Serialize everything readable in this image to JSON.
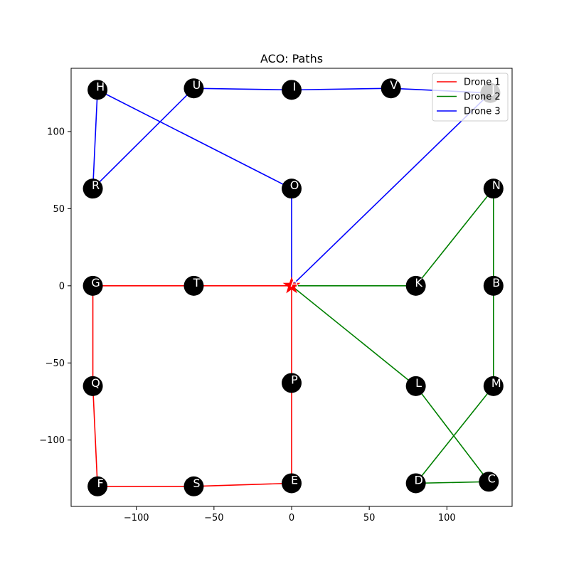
{
  "chart_data": {
    "type": "scatter",
    "title": "ACO: Paths",
    "xlabel": "",
    "ylabel": "",
    "xlim": [
      -142,
      142
    ],
    "ylim": [
      -143,
      141
    ],
    "xticks": [
      -100,
      -50,
      0,
      50,
      100
    ],
    "yticks": [
      -100,
      -50,
      0,
      50,
      100
    ],
    "grid": false,
    "legend_position": "top-right",
    "depot": {
      "name": "A",
      "x": 0,
      "y": 0,
      "color": "#ff0000"
    },
    "nodes": [
      {
        "name": "A",
        "x": 0,
        "y": 0
      },
      {
        "name": "B",
        "x": 130,
        "y": 0
      },
      {
        "name": "C",
        "x": 127,
        "y": -127
      },
      {
        "name": "D",
        "x": 80,
        "y": -128
      },
      {
        "name": "E",
        "x": 0,
        "y": -128
      },
      {
        "name": "F",
        "x": -125,
        "y": -130
      },
      {
        "name": "G",
        "x": -128,
        "y": 0
      },
      {
        "name": "H",
        "x": -125,
        "y": 127
      },
      {
        "name": "I",
        "x": 0,
        "y": 127
      },
      {
        "name": "J",
        "x": 128,
        "y": 125
      },
      {
        "name": "K",
        "x": 80,
        "y": 0
      },
      {
        "name": "L",
        "x": 80,
        "y": -65
      },
      {
        "name": "M",
        "x": 130,
        "y": -65
      },
      {
        "name": "N",
        "x": 130,
        "y": 63
      },
      {
        "name": "O",
        "x": 0,
        "y": 63
      },
      {
        "name": "P",
        "x": 0,
        "y": -63
      },
      {
        "name": "Q",
        "x": -128,
        "y": -65
      },
      {
        "name": "R",
        "x": -128,
        "y": 63
      },
      {
        "name": "S",
        "x": -63,
        "y": -130
      },
      {
        "name": "T",
        "x": -63,
        "y": 0
      },
      {
        "name": "U",
        "x": -63,
        "y": 128
      },
      {
        "name": "V",
        "x": 64,
        "y": 128
      }
    ],
    "series": [
      {
        "name": "Drone 1",
        "color": "#ff0000",
        "route": [
          "A",
          "T",
          "G",
          "Q",
          "F",
          "S",
          "E",
          "P",
          "A"
        ]
      },
      {
        "name": "Drone 2",
        "color": "#008000",
        "route": [
          "A",
          "K",
          "N",
          "B",
          "M",
          "D",
          "C",
          "L",
          "A"
        ]
      },
      {
        "name": "Drone 3",
        "color": "#0000ff",
        "route": [
          "A",
          "O",
          "H",
          "R",
          "U",
          "I",
          "V",
          "J",
          "A"
        ]
      }
    ]
  }
}
